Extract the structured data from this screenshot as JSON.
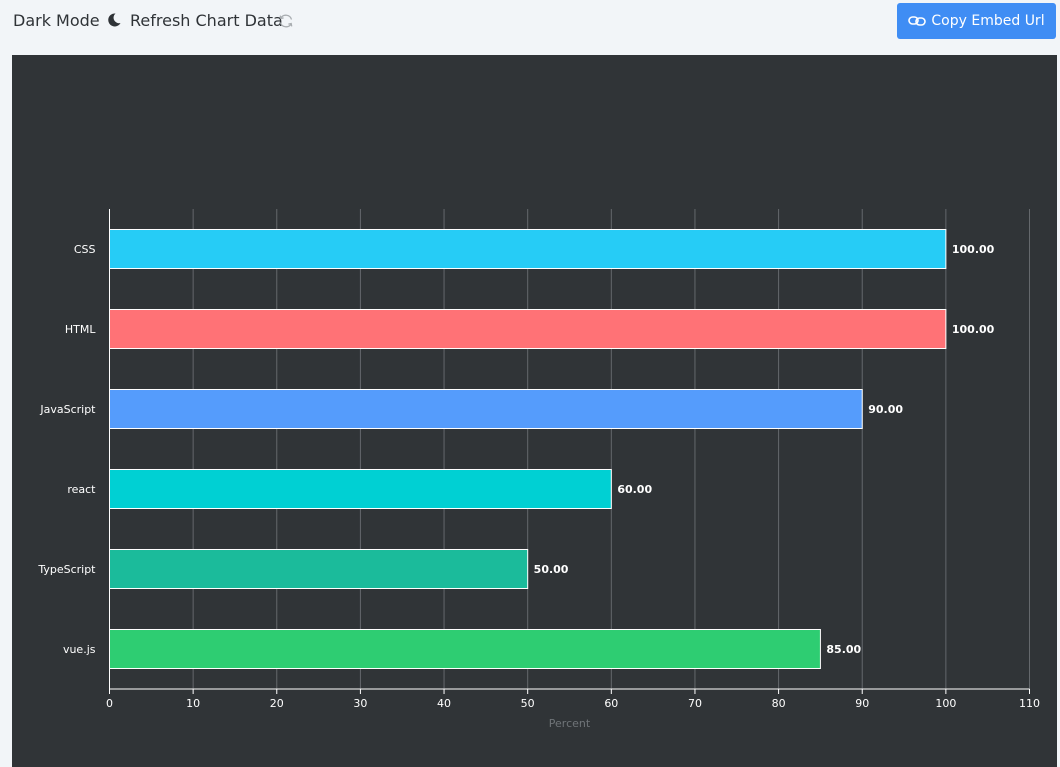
{
  "toolbar": {
    "dark_mode_label": "Dark Mode",
    "dark_mode_icon": "moon-icon",
    "refresh_label": "Refresh Chart Data",
    "refresh_icon": "refresh-icon",
    "embed_button_label": "Copy Embed Url",
    "embed_button_icon": "link-icon",
    "embed_button_color": "#3f8df4"
  },
  "chart_data": {
    "type": "bar",
    "orientation": "horizontal",
    "title": "",
    "categories": [
      "CSS",
      "HTML",
      "JavaScript",
      "react",
      "TypeScript",
      "vue.js"
    ],
    "values": [
      100,
      100,
      90,
      60,
      50,
      85
    ],
    "value_labels": [
      "100.00",
      "100.00",
      "90.00",
      "60.00",
      "50.00",
      "85.00"
    ],
    "colors": [
      "#26ccf6",
      "#ff7276",
      "#559cfc",
      "#00d0d3",
      "#1bbb9b",
      "#2ecd72"
    ],
    "xlabel": "Percent",
    "ylabel": "",
    "xlim": [
      0,
      110
    ],
    "xticks": [
      "0",
      "10",
      "20",
      "30",
      "40",
      "50",
      "60",
      "70",
      "80",
      "90",
      "100",
      "110"
    ],
    "grid": true,
    "background": "#303437"
  }
}
